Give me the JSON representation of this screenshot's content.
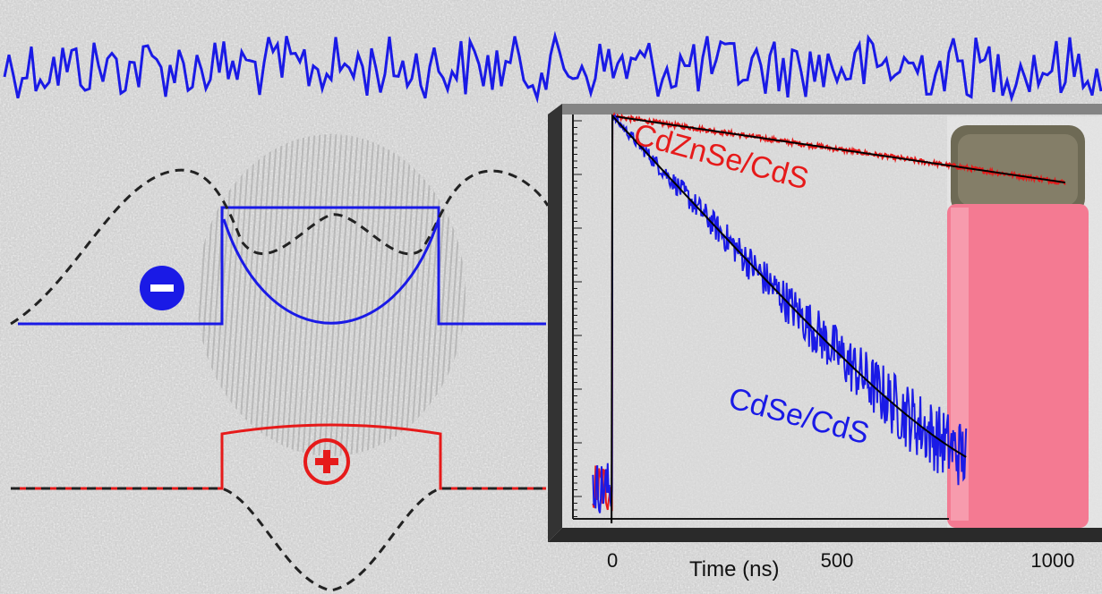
{
  "colors": {
    "electron": "#1a1ae6",
    "hole": "#e61a1a",
    "potential": "#222222",
    "background": "#c8c8c8",
    "vial_liquid": "#f47a92"
  },
  "schematic": {
    "electron_symbol": "−",
    "hole_symbol": "+",
    "noise_trace_color": "#1a1ae6"
  },
  "chart_data": {
    "type": "line",
    "y_scale": "log",
    "x_unit": "ns",
    "xlabel": "Time (ns)",
    "ylabel": "",
    "xlim": [
      -50,
      1050
    ],
    "xticks": [
      0,
      500,
      1000
    ],
    "series": [
      {
        "name": "CdZnSe/CdS",
        "color": "#e61a1a",
        "fit_color": "#000000",
        "peak_time": 0,
        "decay_constant_ns": 1100,
        "x_end": 1050,
        "approx_points": [
          [
            0,
            1.0
          ],
          [
            200,
            0.83
          ],
          [
            500,
            0.63
          ],
          [
            800,
            0.48
          ],
          [
            1050,
            0.39
          ]
        ]
      },
      {
        "name": "CdSe/CdS",
        "color": "#1a1ae6",
        "fit_color": "#000000",
        "peak_time": 0,
        "decay_constant_ns": 150,
        "x_end": 820,
        "approx_points": [
          [
            0,
            1.0
          ],
          [
            100,
            0.51
          ],
          [
            250,
            0.19
          ],
          [
            400,
            0.07
          ],
          [
            600,
            0.018
          ],
          [
            800,
            0.005
          ]
        ]
      }
    ],
    "series_labels": [
      "CdZnSe/CdS",
      "CdSe/CdS"
    ]
  }
}
